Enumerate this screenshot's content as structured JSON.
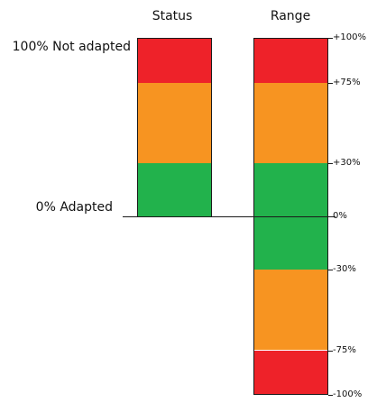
{
  "headers": {
    "status": "Status",
    "range": "Range"
  },
  "status_labels": {
    "top": "100% Not adapted",
    "bottom": "0% Adapted"
  },
  "colors": {
    "red": "#ee2229",
    "orange": "#f79421",
    "green": "#22b24c",
    "outline": "#1a1a1a"
  },
  "status_bar": {
    "segments": [
      {
        "color": "red"
      },
      {
        "color": "orange"
      },
      {
        "color": "green"
      }
    ]
  },
  "range_bar": {
    "segments": [
      {
        "color": "red"
      },
      {
        "color": "orange"
      },
      {
        "color": "green"
      },
      {
        "color": "green"
      },
      {
        "color": "orange"
      },
      {
        "color": "red"
      }
    ]
  },
  "range_ticks": [
    {
      "label": "+100%",
      "value": 100
    },
    {
      "label": "+75%",
      "value": 75
    },
    {
      "label": "+30%",
      "value": 30
    },
    {
      "label": "0%",
      "value": 0
    },
    {
      "label": "-30%",
      "value": -30
    },
    {
      "label": "-75%",
      "value": -75
    },
    {
      "label": "-100%",
      "value": -100
    }
  ]
}
